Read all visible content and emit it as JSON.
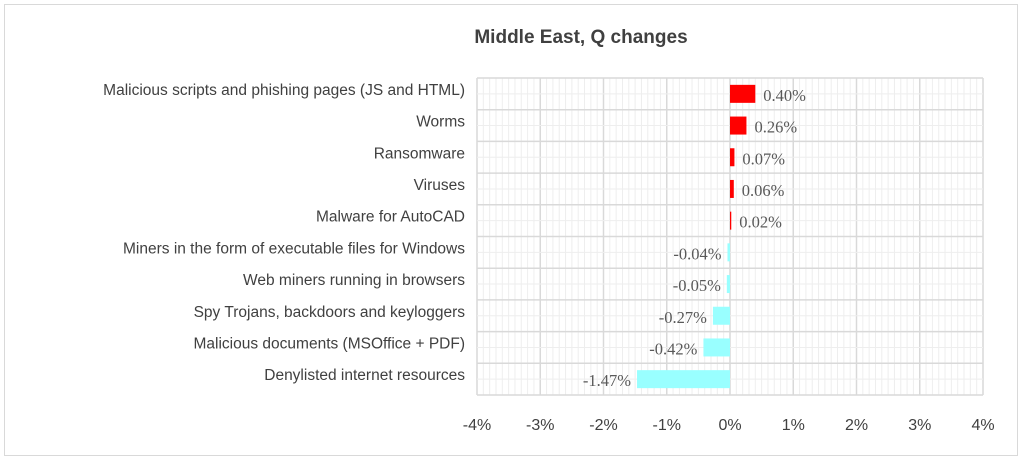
{
  "chart_data": {
    "type": "bar",
    "orientation": "horizontal",
    "title": "Middle East, Q changes",
    "categories": [
      "Malicious scripts and phishing pages (JS and HTML)",
      "Worms",
      "Ransomware",
      "Viruses",
      "Malware for AutoCAD",
      "Miners in the form of executable files for Windows",
      "Web miners running in browsers",
      "Spy Trojans, backdoors and keyloggers",
      "Malicious documents (MSOffice + PDF)",
      "Denylisted internet resources"
    ],
    "values": [
      0.4,
      0.26,
      0.07,
      0.06,
      0.02,
      -0.04,
      -0.05,
      -0.27,
      -0.42,
      -1.47
    ],
    "data_labels": [
      "0.40%",
      "0.26%",
      "0.07%",
      "0.06%",
      "0.02%",
      "-0.04%",
      "-0.05%",
      "-0.27%",
      "-0.42%",
      "-1.47%"
    ],
    "xlim": [
      -4,
      4
    ],
    "x_ticks": [
      "-4%",
      "-3%",
      "-2%",
      "-1%",
      "0%",
      "1%",
      "2%",
      "3%",
      "4%"
    ],
    "xlabel": "",
    "ylabel": "",
    "grid": true,
    "colors": {
      "positive": "#ff0000",
      "negative": "#99ffff",
      "grid_major": "#d9d9d9",
      "grid_minor": "#eeeeee"
    }
  }
}
